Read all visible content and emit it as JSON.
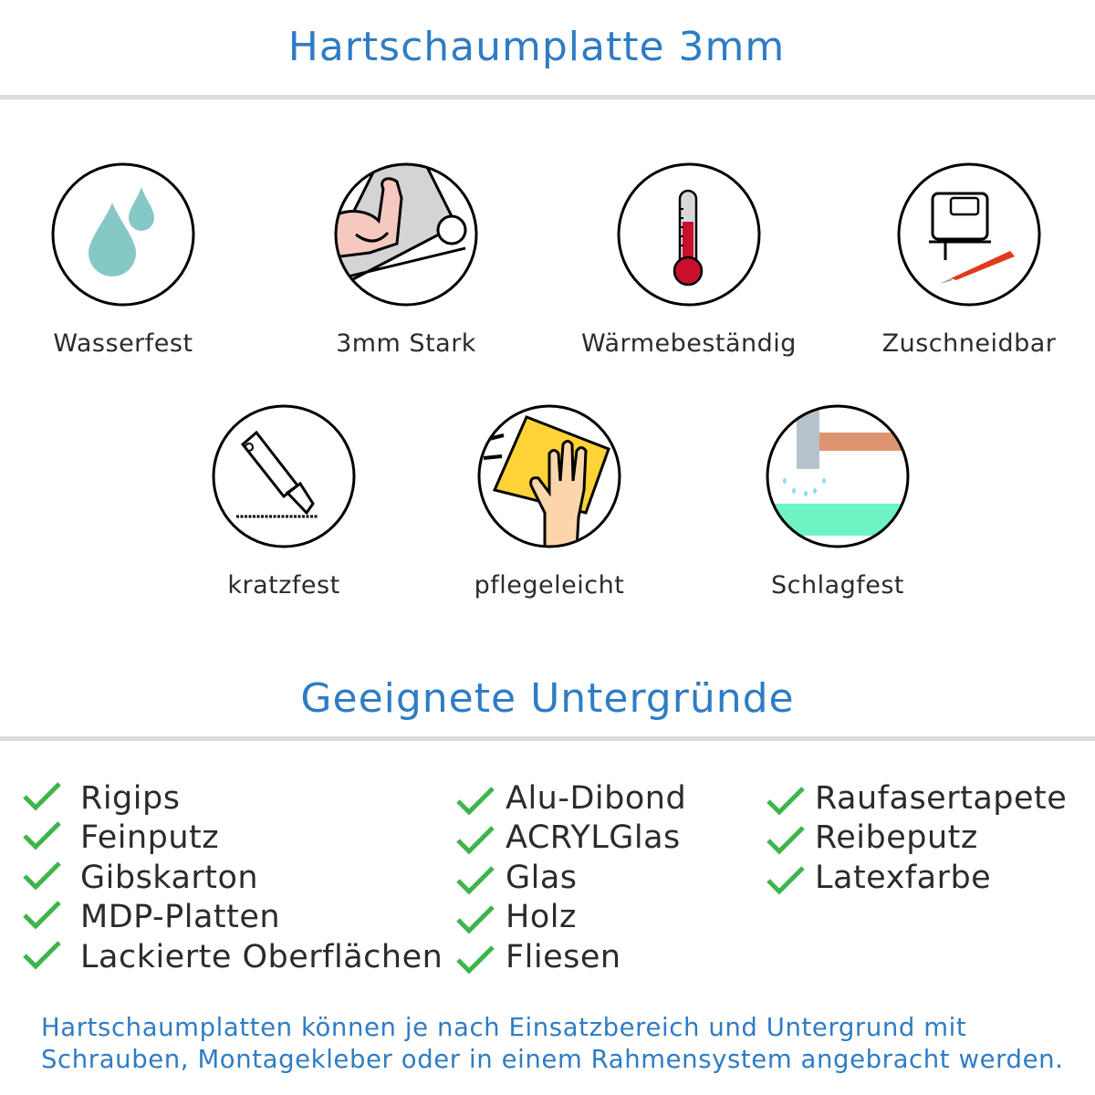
{
  "title": "Hartschaumplatte 3mm",
  "features": [
    {
      "label": "Wasserfest",
      "icon": "water-drops-icon"
    },
    {
      "label": "3mm Stark",
      "icon": "strong-arm-icon"
    },
    {
      "label": "Wärmebeständig",
      "icon": "thermometer-icon"
    },
    {
      "label": "Zuschneidbar",
      "icon": "jigsaw-cutter-icon"
    },
    {
      "label": "kratzfest",
      "icon": "cutter-knife-icon"
    },
    {
      "label": "pflegeleicht",
      "icon": "hand-sponge-icon"
    },
    {
      "label": "Schlagfest",
      "icon": "hammer-icon"
    }
  ],
  "subtitle": "Geeignete Untergründe",
  "surfaces": {
    "col1": [
      "Rigips",
      "Feinputz",
      "Gibskarton",
      "MDP-Platten",
      "Lackierte Oberflächen"
    ],
    "col2": [
      "Alu-Dibond",
      "ACRYLGlas",
      "Glas",
      "Holz",
      "Fliesen"
    ],
    "col3": [
      "Raufasertapete",
      "Reibeputz",
      "Latexfarbe"
    ]
  },
  "footer": {
    "line1": "Hartschaumplatten können je nach Einsatzbereich und Untergrund mit",
    "line2": "Schrauben, Montagekleber oder in einem Rahmensystem angebracht werden."
  },
  "colors": {
    "accent": "#2f7cc3",
    "check": "#3db54a"
  }
}
